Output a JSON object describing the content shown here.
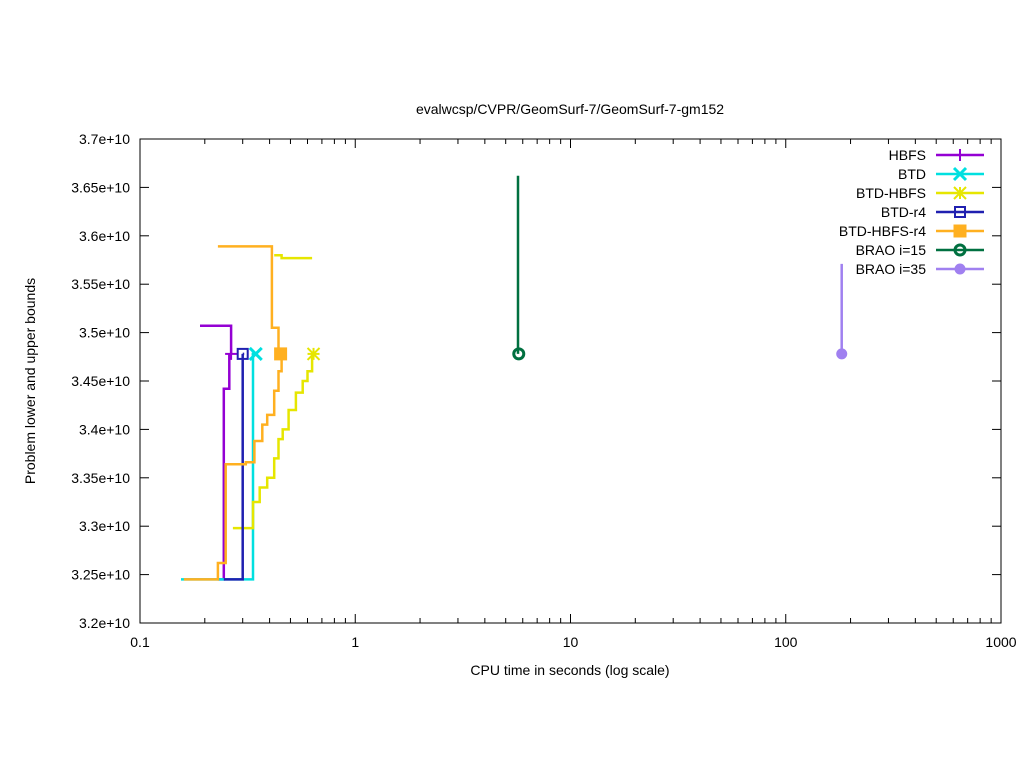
{
  "chart_data": {
    "type": "line",
    "title": "evalwcsp/CVPR/GeomSurf-7/GeomSurf-7-gm152",
    "xlabel": "CPU time in seconds (log scale)",
    "ylabel": "Problem lower and upper bounds",
    "xscale": "log",
    "xlim": [
      0.1,
      1000
    ],
    "ylim": [
      32000000000,
      37000000000
    ],
    "x_ticks": [
      0.1,
      1,
      10,
      100,
      1000
    ],
    "x_tick_labels": [
      "0.1",
      "1",
      "10",
      "100",
      "1000"
    ],
    "y_ticks": [
      32000000000,
      32500000000,
      33000000000,
      33500000000,
      34000000000,
      34500000000,
      35000000000,
      35500000000,
      36000000000,
      36500000000,
      37000000000
    ],
    "y_tick_labels": [
      "3.2e+10",
      "3.25e+10",
      "3.3e+10",
      "3.35e+10",
      "3.4e+10",
      "3.45e+10",
      "3.5e+10",
      "3.55e+10",
      "3.6e+10",
      "3.65e+10",
      "3.7e+10"
    ],
    "grid": false,
    "legend_position": "top-right",
    "series": [
      {
        "name": "HBFS",
        "color": "#9400d3",
        "marker": "plus",
        "upper": [
          [
            0.19,
            35070000000
          ],
          [
            0.265,
            35070000000
          ],
          [
            0.265,
            34780000000
          ]
        ],
        "lower": [
          [
            0.23,
            32450000000
          ],
          [
            0.245,
            32450000000
          ],
          [
            0.245,
            34420000000
          ],
          [
            0.26,
            34420000000
          ],
          [
            0.26,
            34780000000
          ]
        ],
        "marker_point": [
          0.265,
          34780000000
        ]
      },
      {
        "name": "BTD",
        "color": "#00e0e0",
        "marker": "cross",
        "upper": [
          [
            0.33,
            34780000000
          ],
          [
            0.345,
            34780000000
          ]
        ],
        "lower": [
          [
            0.155,
            32450000000
          ],
          [
            0.335,
            32450000000
          ],
          [
            0.335,
            34780000000
          ]
        ],
        "marker_point": [
          0.345,
          34780000000
        ]
      },
      {
        "name": "BTD-HBFS",
        "color": "#e6e600",
        "marker": "star",
        "upper": [
          [
            0.42,
            35800000000
          ],
          [
            0.455,
            35800000000
          ],
          [
            0.455,
            35770000000
          ],
          [
            0.63,
            35770000000
          ]
        ],
        "lower": [
          [
            0.27,
            32980000000
          ],
          [
            0.335,
            32980000000
          ],
          [
            0.335,
            33250000000
          ],
          [
            0.36,
            33250000000
          ],
          [
            0.36,
            33400000000
          ],
          [
            0.39,
            33400000000
          ],
          [
            0.39,
            33500000000
          ],
          [
            0.42,
            33500000000
          ],
          [
            0.42,
            33700000000
          ],
          [
            0.44,
            33700000000
          ],
          [
            0.44,
            33900000000
          ],
          [
            0.46,
            33900000000
          ],
          [
            0.46,
            34000000000
          ],
          [
            0.49,
            34000000000
          ],
          [
            0.49,
            34200000000
          ],
          [
            0.53,
            34200000000
          ],
          [
            0.53,
            34380000000
          ],
          [
            0.57,
            34380000000
          ],
          [
            0.57,
            34500000000
          ],
          [
            0.6,
            34500000000
          ],
          [
            0.6,
            34600000000
          ],
          [
            0.63,
            34600000000
          ],
          [
            0.63,
            34780000000
          ]
        ],
        "marker_point": [
          0.64,
          34780000000
        ]
      },
      {
        "name": "BTD-r4",
        "color": "#2020b0",
        "marker": "square-open",
        "upper": [
          [
            0.3,
            34780000000
          ],
          [
            0.305,
            34780000000
          ]
        ],
        "lower": [
          [
            0.245,
            32450000000
          ],
          [
            0.3,
            32450000000
          ],
          [
            0.3,
            34780000000
          ]
        ],
        "marker_point": [
          0.3,
          34780000000
        ]
      },
      {
        "name": "BTD-HBFS-r4",
        "color": "#ffb020",
        "marker": "square-filled",
        "upper": [
          [
            0.23,
            35890000000
          ],
          [
            0.41,
            35890000000
          ],
          [
            0.41,
            35050000000
          ],
          [
            0.44,
            35050000000
          ],
          [
            0.44,
            34780000000
          ]
        ],
        "lower": [
          [
            0.16,
            32450000000
          ],
          [
            0.23,
            32450000000
          ],
          [
            0.23,
            32620000000
          ],
          [
            0.25,
            32620000000
          ],
          [
            0.25,
            33640000000
          ],
          [
            0.31,
            33640000000
          ],
          [
            0.31,
            33660000000
          ],
          [
            0.34,
            33660000000
          ],
          [
            0.34,
            33880000000
          ],
          [
            0.37,
            33880000000
          ],
          [
            0.37,
            34050000000
          ],
          [
            0.39,
            34050000000
          ],
          [
            0.39,
            34150000000
          ],
          [
            0.42,
            34150000000
          ],
          [
            0.42,
            34400000000
          ],
          [
            0.44,
            34400000000
          ],
          [
            0.44,
            34600000000
          ],
          [
            0.455,
            34600000000
          ],
          [
            0.455,
            34780000000
          ]
        ],
        "marker_point": [
          0.45,
          34780000000
        ]
      },
      {
        "name": "BRAO i=15",
        "color": "#007040",
        "marker": "circle-open",
        "upper": [
          [
            5.7,
            36620000000
          ],
          [
            5.7,
            34780000000
          ]
        ],
        "lower": [],
        "marker_point": [
          5.75,
          34780000000
        ]
      },
      {
        "name": "BRAO i=35",
        "color": "#a080f0",
        "marker": "circle-filled",
        "upper": [
          [
            182,
            35710000000
          ],
          [
            182,
            34780000000
          ]
        ],
        "lower": [],
        "marker_point": [
          182,
          34780000000
        ]
      }
    ]
  }
}
